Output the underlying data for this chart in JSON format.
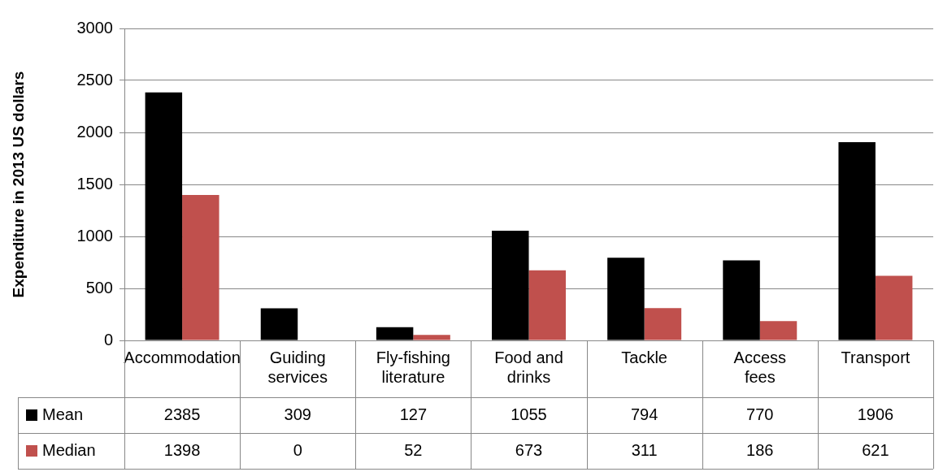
{
  "chart_data": {
    "type": "bar",
    "ylabel": "Expenditure in 2013 US dollars",
    "categories": [
      "Accommodation",
      "Guiding services",
      "Fly-fishing literature",
      "Food and drinks",
      "Tackle",
      "Access fees",
      "Transport"
    ],
    "series": [
      {
        "name": "Mean",
        "color": "#000000",
        "values": [
          2385,
          309,
          127,
          1055,
          794,
          770,
          1906
        ]
      },
      {
        "name": "Median",
        "color": "#c0504d",
        "values": [
          1398,
          0,
          52,
          673,
          311,
          186,
          621
        ]
      }
    ],
    "ylim": [
      0,
      3000
    ],
    "yticks": [
      0,
      500,
      1000,
      1500,
      2000,
      2500,
      3000
    ],
    "grid": "y",
    "legend": "bottom",
    "data_labels": true
  }
}
